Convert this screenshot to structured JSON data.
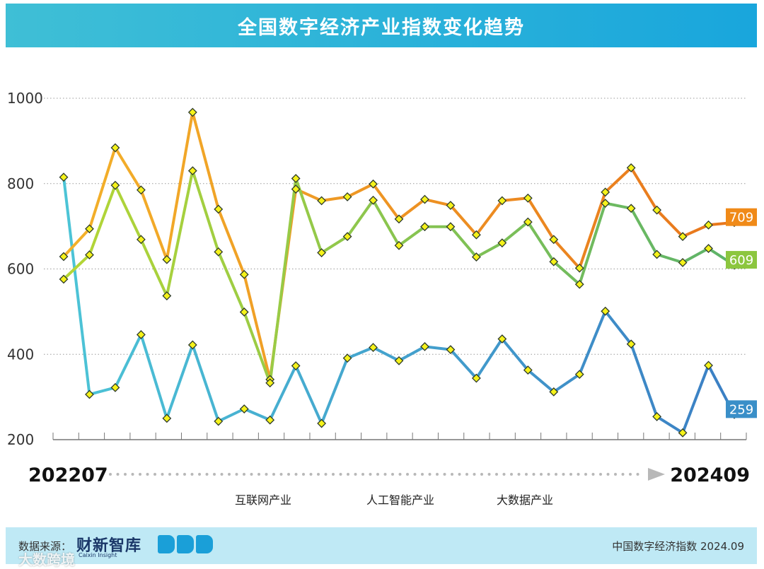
{
  "header": {
    "title": "全国数字经济产业指数变化趋势"
  },
  "chart_data": {
    "type": "line",
    "title": "全国数字经济产业指数变化趋势",
    "x_start_label": "202207",
    "x_end_label": "202409",
    "y_ticks": [
      200,
      400,
      600,
      800,
      1000
    ],
    "ylim": [
      200,
      1000
    ],
    "grid": "horizontal-dotted",
    "legend_position": "bottom",
    "point_count": 27,
    "series": [
      {
        "name": "互联网产业",
        "color": "#3aa8d0",
        "end_label": "259",
        "values": [
          815,
          306,
          322,
          446,
          250,
          422,
          243,
          272,
          246,
          373,
          238,
          391,
          416,
          385,
          418,
          411,
          344,
          436,
          363,
          312,
          353,
          501,
          424,
          254,
          216,
          374,
          259
        ]
      },
      {
        "name": "人工智能产业",
        "color": "#f0951e",
        "end_label": "709",
        "values": [
          629,
          694,
          884,
          785,
          622,
          967,
          740,
          587,
          341,
          787,
          760,
          769,
          799,
          717,
          763,
          749,
          680,
          760,
          766,
          669,
          602,
          780,
          837,
          738,
          676,
          703,
          709
        ]
      },
      {
        "name": "大数据产业",
        "color": "#9ccd36",
        "end_label": "609",
        "values": [
          576,
          633,
          796,
          669,
          537,
          830,
          640,
          499,
          333,
          812,
          638,
          676,
          761,
          655,
          699,
          699,
          628,
          661,
          710,
          617,
          564,
          754,
          742,
          634,
          615,
          648,
          609
        ]
      }
    ]
  },
  "footer": {
    "source_label": "数据来源：",
    "brand_name": "财新智库",
    "brand_en": "Caixin Insight",
    "right_text": "中国数字经济指数 2024.09"
  },
  "watermark": "大数跨境"
}
